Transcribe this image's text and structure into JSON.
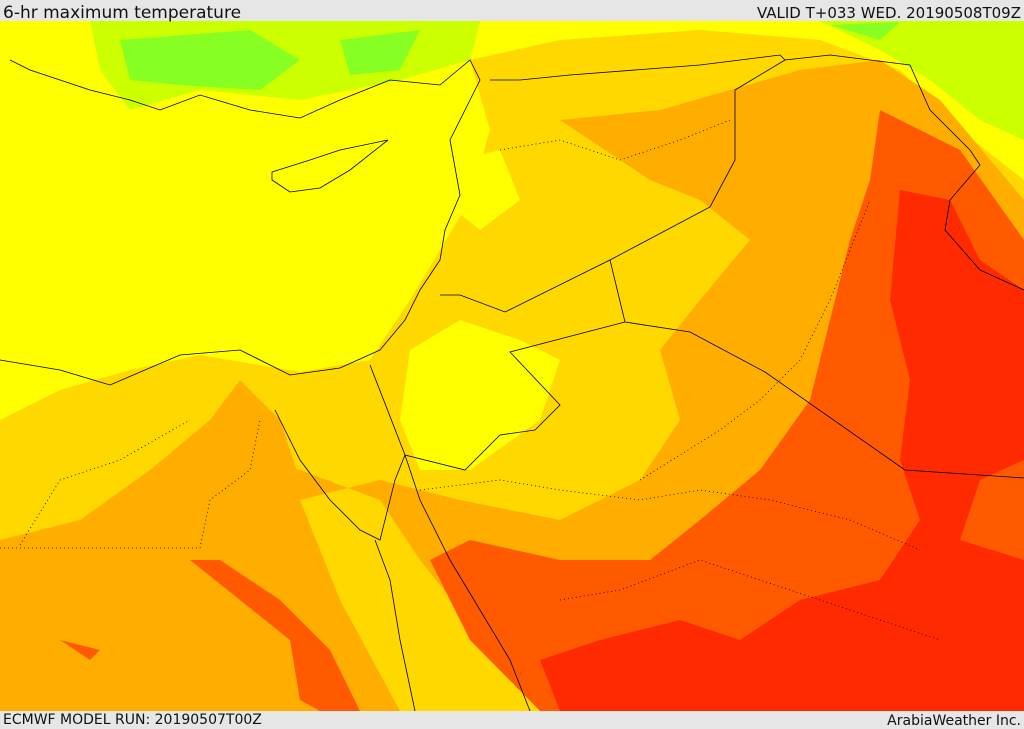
{
  "header": {
    "title": "6-hr maximum temperature",
    "valid": "VALID T+033 WED. 20190508T09Z"
  },
  "footer": {
    "model_run": "ECMWF MODEL RUN: 20190507T00Z",
    "brand": "ArabiaWeather Inc."
  },
  "colors": {
    "green": "#aaff00",
    "cyan_green": "#33dd88",
    "yellow": "#ffff00",
    "gold": "#ffd800",
    "orange": "#ffae00",
    "dark_orange": "#ff5a00",
    "red": "#ff2a00"
  }
}
